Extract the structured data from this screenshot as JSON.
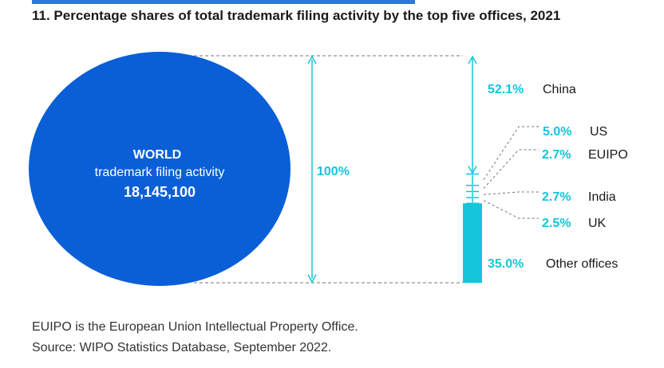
{
  "chart_data": {
    "type": "bar",
    "title": "11. Percentage shares of total trademark filing activity by the top five offices, 2021",
    "world": {
      "heading": "WORLD",
      "subheading": "trademark filing activity",
      "total_label": "18,145,100"
    },
    "total_label": "100%",
    "unit": "%",
    "categories": [
      "China",
      "US",
      "EUIPO",
      "India",
      "UK",
      "Other offices"
    ],
    "values": [
      52.1,
      5.0,
      2.7,
      2.7,
      2.5,
      35.0
    ],
    "value_labels": [
      "52.1%",
      "5.0%",
      "2.7%",
      "2.7%",
      "2.5%",
      "35.0%"
    ],
    "colors": {
      "world_circle": "#0a5fd6",
      "accent": "#14c5dc",
      "other_bar": "#14c5dc",
      "dashed": "#777777",
      "text": "#1a1a1a"
    }
  },
  "footnote": {
    "line1": "EUIPO is the European Union Intellectual Property Office.",
    "line2": "Source: WIPO Statistics Database, September 2022."
  }
}
